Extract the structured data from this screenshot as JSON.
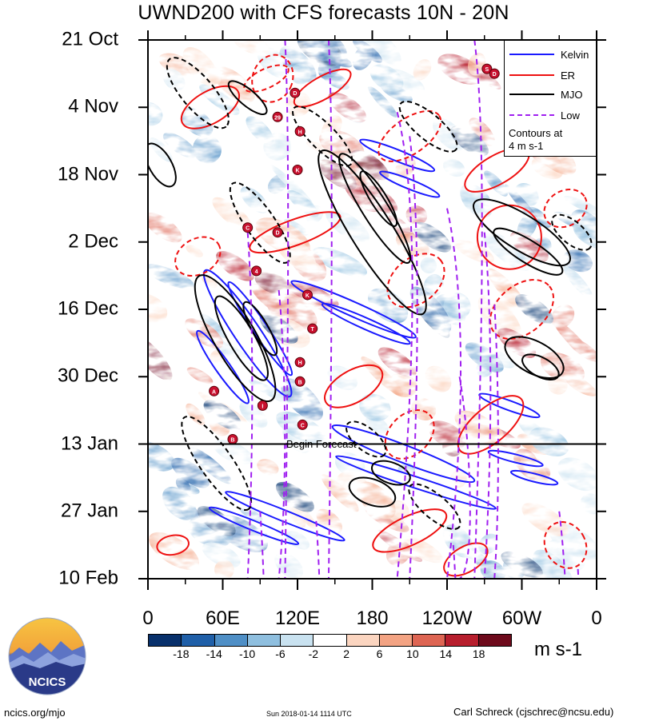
{
  "chart_data": {
    "type": "heatmap",
    "title": "UWND200 with CFS forecasts  10N - 20N",
    "xlabel": "",
    "ylabel": "",
    "x_ticks": [
      "0",
      "60E",
      "120E",
      "180",
      "120W",
      "60W",
      "0"
    ],
    "x_tick_values": [
      0,
      60,
      120,
      180,
      240,
      300,
      360
    ],
    "y_ticks": [
      "21 Oct",
      "4 Nov",
      "18 Nov",
      "2 Dec",
      "16 Dec",
      "30 Dec",
      "13 Jan",
      "27 Jan",
      "10 Feb"
    ],
    "y_tick_days": [
      0,
      14,
      28,
      42,
      56,
      70,
      84,
      98,
      112
    ],
    "xlim": [
      0,
      360
    ],
    "ylim_days": [
      0,
      112
    ],
    "colorbar": {
      "levels": [
        -18,
        -14,
        -10,
        -6,
        -2,
        2,
        6,
        10,
        14,
        18
      ],
      "tick_labels": [
        "-18",
        "-14",
        "-10",
        "-6",
        "-2",
        "2",
        "6",
        "10",
        "14",
        "18"
      ],
      "colors": [
        "#08306b",
        "#1f5fa8",
        "#4f8fc6",
        "#8fbfdf",
        "#c9e2f0",
        "#ffffff",
        "#fbd5c0",
        "#f3a383",
        "#de6553",
        "#b71e2d",
        "#6d0a1b"
      ],
      "units": "m s-1"
    },
    "legend": {
      "placement": "top-right",
      "entries": [
        {
          "name": "Kelvin",
          "color": "#1a1aff",
          "style": "solid"
        },
        {
          "name": "ER",
          "color": "#ee1111",
          "style": "solid"
        },
        {
          "name": "MJO",
          "color": "#000000",
          "style": "solid"
        },
        {
          "name": "Low",
          "color": "#a020f0",
          "style": "dashed"
        }
      ],
      "note": [
        "Contours at",
        "4 m s-1"
      ]
    },
    "forecast_line": {
      "day": 84,
      "label": "Begin Forecast"
    },
    "markers": [
      {
        "label": "S",
        "lon": 272,
        "day": 6
      },
      {
        "label": "D",
        "lon": 278,
        "day": 7
      },
      {
        "label": "D",
        "lon": 118,
        "day": 11
      },
      {
        "label": "29",
        "lon": 104,
        "day": 16
      },
      {
        "label": "H",
        "lon": 122,
        "day": 19
      },
      {
        "label": "K",
        "lon": 120,
        "day": 27
      },
      {
        "label": "C",
        "lon": 80,
        "day": 39
      },
      {
        "label": "D",
        "lon": 104,
        "day": 40
      },
      {
        "label": "4",
        "lon": 87,
        "day": 48
      },
      {
        "label": "K",
        "lon": 128,
        "day": 53
      },
      {
        "label": "T",
        "lon": 132,
        "day": 60
      },
      {
        "label": "H",
        "lon": 122,
        "day": 67
      },
      {
        "label": "B",
        "lon": 122,
        "day": 71
      },
      {
        "label": "A",
        "lon": 53,
        "day": 73
      },
      {
        "label": "I",
        "lon": 92,
        "day": 76
      },
      {
        "label": "C",
        "lon": 124,
        "day": 80
      },
      {
        "label": "B",
        "lon": 68,
        "day": 83
      }
    ]
  },
  "footer": {
    "left": "ncics.org/mjo",
    "middle": "Sun 2018-01-14 1114 UTC",
    "right": "Carl Schreck (cjschrec@ncsu.edu)"
  },
  "logo": {
    "text": "NCICS"
  }
}
